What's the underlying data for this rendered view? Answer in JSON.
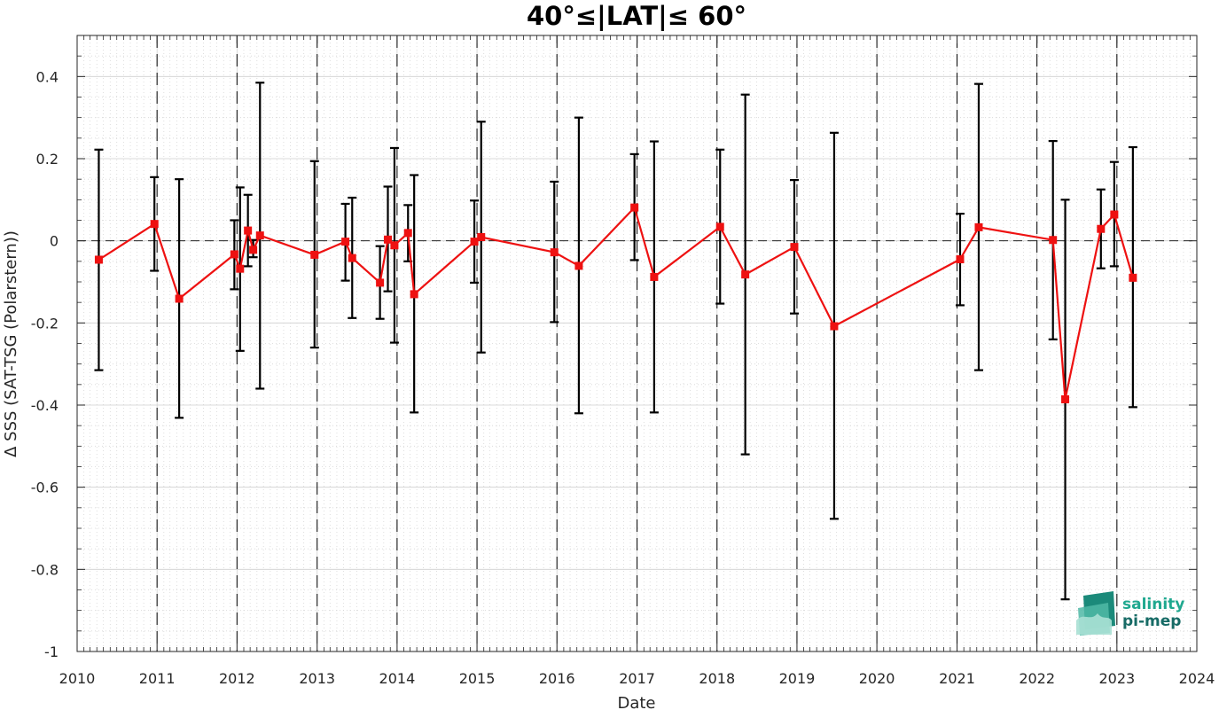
{
  "chart_data": {
    "type": "line",
    "title": "40°≤|LAT|≤ 60°",
    "xlabel": "Date",
    "ylabel": "Δ SSS (SAT-TSG (Polarstern))",
    "xlim": [
      "2010-01-01",
      "2024-01-01"
    ],
    "ylim": [
      -1,
      0.5
    ],
    "x_ticks": [
      "2010",
      "2011",
      "2012",
      "2013",
      "2014",
      "2015",
      "2016",
      "2017",
      "2018",
      "2019",
      "2020",
      "2021",
      "2022",
      "2023",
      "2024"
    ],
    "y_ticks": [
      "-1",
      "-0.8",
      "-0.6",
      "-0.4",
      "-0.2",
      "0",
      "0.2",
      "0.4"
    ],
    "grid": true,
    "year_lines": [
      "2011",
      "2012",
      "2013",
      "2014",
      "2015",
      "2016",
      "2017",
      "2018",
      "2019",
      "2020",
      "2021",
      "2022",
      "2023"
    ],
    "zero_line": 0,
    "colors": {
      "line": "#ee1111",
      "marker": "#ee1111",
      "errorbar": "#000000",
      "dashed": "#000000"
    },
    "series": [
      {
        "x": [
          "2010-04-10",
          "2010-12-20",
          "2011-04-12",
          "2011-12-20",
          "2012-01-15",
          "2012-02-20",
          "2012-03-15",
          "2012-04-15",
          "2012-12-20",
          "2013-05-10",
          "2013-06-10",
          "2013-10-15",
          "2013-11-20",
          "2013-12-20",
          "2014-02-20",
          "2014-03-20",
          "2014-12-20",
          "2015-01-20",
          "2015-12-20",
          "2016-04-10",
          "2016-12-20",
          "2017-03-20",
          "2018-01-15",
          "2018-05-10",
          "2018-12-20",
          "2019-06-20",
          "2021-01-15",
          "2021-04-10",
          "2022-03-15",
          "2022-05-10",
          "2022-10-20",
          "2022-12-20",
          "2023-03-15"
        ],
        "y": [
          -0.046,
          0.041,
          -0.141,
          -0.033,
          -0.068,
          0.025,
          -0.022,
          0.013,
          -0.034,
          -0.002,
          -0.042,
          -0.102,
          0.003,
          -0.011,
          0.019,
          -0.13,
          -0.002,
          0.009,
          -0.028,
          -0.061,
          0.081,
          -0.088,
          0.034,
          -0.082,
          -0.015,
          -0.208,
          -0.045,
          0.033,
          0.002,
          -0.386,
          0.029,
          0.064,
          -0.09
        ],
        "err_low": [
          -0.315,
          -0.073,
          -0.431,
          -0.118,
          -0.268,
          -0.062,
          -0.04,
          -0.36,
          -0.26,
          -0.097,
          -0.188,
          -0.19,
          -0.123,
          -0.248,
          -0.05,
          -0.418,
          -0.102,
          -0.272,
          -0.198,
          -0.42,
          -0.047,
          -0.418,
          -0.153,
          -0.52,
          -0.177,
          -0.677,
          -0.157,
          -0.315,
          -0.24,
          -0.873,
          -0.067,
          -0.062,
          -0.405
        ],
        "err_high": [
          0.222,
          0.155,
          0.15,
          0.05,
          0.13,
          0.112,
          0.002,
          0.385,
          0.194,
          0.09,
          0.105,
          -0.013,
          0.132,
          0.226,
          0.087,
          0.16,
          0.098,
          0.29,
          0.144,
          0.3,
          0.211,
          0.242,
          0.222,
          0.356,
          0.148,
          0.263,
          0.066,
          0.382,
          0.243,
          0.1,
          0.125,
          0.192,
          0.228
        ]
      }
    ],
    "logo": {
      "line1": "salinity",
      "line2": "pi-mep"
    }
  }
}
